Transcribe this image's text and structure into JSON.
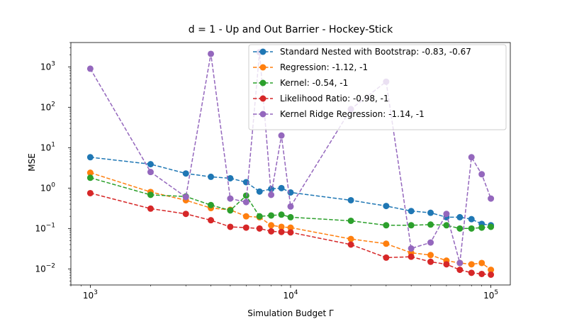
{
  "chart_data": {
    "type": "line",
    "title": "d = 1 - Up and Out Barrier - Hockey-Stick",
    "xlabel": "Simulation Budget Γ",
    "ylabel": "MSE",
    "xscale": "log",
    "yscale": "log",
    "xlim": [
      800,
      125000
    ],
    "ylim": [
      0.004,
      4000
    ],
    "x_ticks": [
      {
        "value": 1000,
        "mantissa": "10",
        "exp": "3"
      },
      {
        "value": 10000,
        "mantissa": "10",
        "exp": "4"
      },
      {
        "value": 100000,
        "mantissa": "10",
        "exp": "5"
      }
    ],
    "y_ticks": [
      {
        "value": 0.01,
        "mantissa": "10",
        "exp": "−2"
      },
      {
        "value": 0.1,
        "mantissa": "10",
        "exp": "−1"
      },
      {
        "value": 1,
        "mantissa": "10",
        "exp": "0"
      },
      {
        "value": 10,
        "mantissa": "10",
        "exp": "1"
      },
      {
        "value": 100,
        "mantissa": "10",
        "exp": "2"
      },
      {
        "value": 1000,
        "mantissa": "10",
        "exp": "3"
      }
    ],
    "grid": false,
    "legend_position": "top-right",
    "x": [
      1000,
      2000,
      3000,
      4000,
      5000,
      6000,
      7000,
      8000,
      9000,
      10000,
      20000,
      30000,
      40000,
      50000,
      60000,
      70000,
      80000,
      90000,
      100000
    ],
    "series": [
      {
        "name": "Standard Nested with Bootstrap: -0.83, -0.67",
        "color": "#1f77b4",
        "values": [
          5.8,
          3.9,
          2.3,
          1.9,
          1.75,
          1.4,
          0.82,
          0.95,
          1.0,
          0.78,
          0.5,
          0.36,
          0.27,
          0.245,
          0.19,
          0.19,
          0.17,
          0.13,
          0.12
        ]
      },
      {
        "name": "Regression: -1.12, -1",
        "color": "#ff7f0e",
        "values": [
          2.4,
          0.8,
          0.5,
          0.32,
          0.29,
          0.2,
          0.19,
          0.12,
          0.11,
          0.105,
          0.055,
          0.042,
          0.025,
          0.022,
          0.016,
          0.014,
          0.013,
          0.014,
          0.0095
        ]
      },
      {
        "name": "Kernel: -0.54, -1",
        "color": "#2ca02c",
        "values": [
          1.8,
          0.68,
          0.62,
          0.38,
          0.28,
          0.65,
          0.2,
          0.21,
          0.22,
          0.19,
          0.155,
          0.12,
          0.12,
          0.125,
          0.12,
          0.1,
          0.1,
          0.105,
          0.11
        ]
      },
      {
        "name": "Likelihood Ratio: -0.98, -1",
        "color": "#d62728",
        "values": [
          0.75,
          0.31,
          0.23,
          0.16,
          0.11,
          0.105,
          0.1,
          0.085,
          0.082,
          0.08,
          0.04,
          0.019,
          0.02,
          0.015,
          0.013,
          0.0095,
          0.008,
          0.0075,
          0.0072
        ]
      },
      {
        "name": "Kernel Ridge Regression: -1.14, -1",
        "color": "#9467bd",
        "values": [
          900,
          2.5,
          0.6,
          2100,
          0.55,
          0.45,
          2300,
          0.68,
          20,
          0.35,
          90,
          430,
          0.032,
          0.045,
          0.23,
          0.014,
          5.8,
          2.2,
          0.55
        ]
      }
    ]
  }
}
